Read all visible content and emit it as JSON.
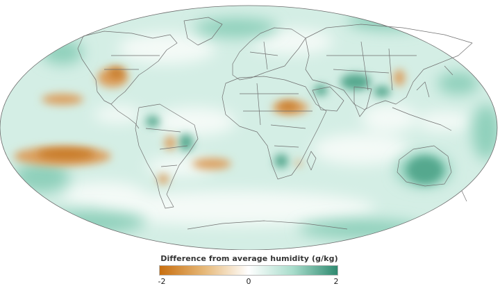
{
  "legend": {
    "title": "Difference from average humidity (g/kg)",
    "min_label": "-2",
    "mid_label": "0",
    "max_label": "2",
    "colors": [
      "#c86f10",
      "#e6b878",
      "#ffffff",
      "#a8dccb",
      "#2f8a70"
    ]
  },
  "map": {
    "projection": "mollweide",
    "ocean_color": "#d2ede4",
    "border_color": "#707070"
  }
}
